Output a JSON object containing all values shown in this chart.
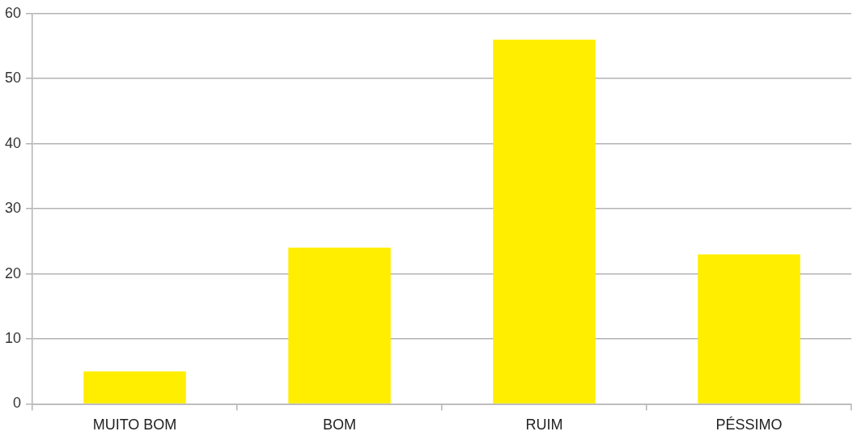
{
  "chart_data": {
    "type": "bar",
    "categories": [
      "MUITO BOM",
      "BOM",
      "RUIM",
      "PÉSSIMO"
    ],
    "values": [
      5,
      24,
      56,
      23
    ],
    "color": "#ffee00",
    "ylim": [
      0,
      60
    ],
    "yticks": [
      0,
      10,
      20,
      30,
      40,
      50,
      60
    ],
    "grid": "y",
    "legend": false
  }
}
